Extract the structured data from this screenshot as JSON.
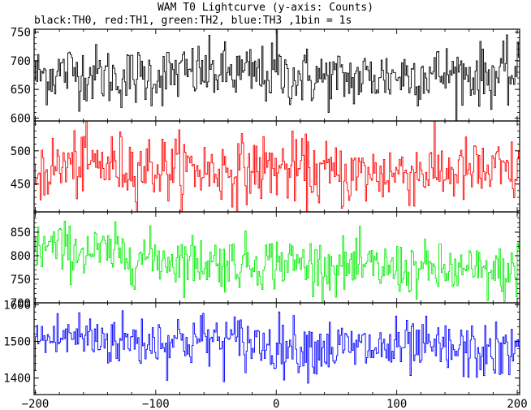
{
  "title": "WAM T0 Lightcurve (y-axis: Counts)",
  "subtitle": "black:TH0, red:TH1, green:TH2, blue:TH3 ,1bin = 1s",
  "chart_data": {
    "type": "line",
    "xlim": [
      -201,
      202
    ],
    "x_ticks": [
      -200,
      -100,
      0,
      100,
      200
    ],
    "x_tick_labels": [
      "−200",
      "−100",
      "0",
      "100",
      "200"
    ],
    "panels": [
      {
        "name": "TH0",
        "color": "#000000",
        "ylim": [
          595,
          755
        ],
        "y_ticks": [
          600,
          650,
          700,
          750
        ],
        "mean": 674,
        "spread": 26,
        "trend": [
          [
            -200,
            0
          ],
          [
            -170,
            8
          ],
          [
            -130,
            -4
          ],
          [
            -60,
            6
          ],
          [
            0,
            0
          ],
          [
            60,
            -6
          ],
          [
            120,
            4
          ],
          [
            200,
            0
          ]
        ],
        "spike": {
          "x": 0,
          "value": 790
        }
      },
      {
        "name": "TH1",
        "color": "#ff0000",
        "ylim": [
          408,
          545
        ],
        "y_ticks": [
          450,
          500
        ],
        "mean": 470,
        "spread": 25,
        "trend": [
          [
            -200,
            0
          ],
          [
            -160,
            10
          ],
          [
            -100,
            5
          ],
          [
            -40,
            0
          ],
          [
            0,
            4
          ],
          [
            60,
            -8
          ],
          [
            120,
            0
          ],
          [
            200,
            -4
          ]
        ],
        "spike": null
      },
      {
        "name": "TH2",
        "color": "#00ee00",
        "ylim": [
          700,
          893
        ],
        "y_ticks": [
          700,
          750,
          800,
          850
        ],
        "mean": 795,
        "spread": 28,
        "trend": [
          [
            -200,
            25
          ],
          [
            -160,
            15
          ],
          [
            -100,
            0
          ],
          [
            -40,
            -10
          ],
          [
            0,
            -8
          ],
          [
            60,
            -20
          ],
          [
            120,
            -25
          ],
          [
            200,
            -35
          ]
        ],
        "spike": null
      },
      {
        "name": "TH3",
        "color": "#0000ff",
        "ylim": [
          1355,
          1605
        ],
        "y_ticks": [
          1400,
          1500,
          1600
        ],
        "mean": 1490,
        "spread": 38,
        "trend": [
          [
            -200,
            10
          ],
          [
            -170,
            25
          ],
          [
            -120,
            10
          ],
          [
            -60,
            15
          ],
          [
            0,
            0
          ],
          [
            60,
            -10
          ],
          [
            120,
            -10
          ],
          [
            200,
            -25
          ]
        ],
        "spike": null
      }
    ]
  }
}
